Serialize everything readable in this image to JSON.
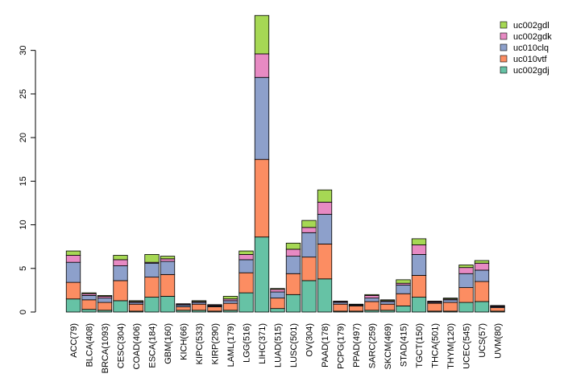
{
  "chart_data": {
    "type": "bar",
    "stacked": true,
    "title": "",
    "xlabel": "",
    "ylabel": "",
    "ylim": [
      0,
      34.3
    ],
    "yticks": [
      0,
      5,
      10,
      15,
      20,
      25,
      30
    ],
    "grid": false,
    "legend_position": "top-right",
    "categories": [
      "ACC(79)",
      "BLCA(408)",
      "BRCA(1093)",
      "CESC(304)",
      "COAD(406)",
      "ESCA(184)",
      "GBM(160)",
      "KICH(66)",
      "KIPC(533)",
      "KIRP(290)",
      "LAML(179)",
      "LGG(516)",
      "LIHC(371)",
      "LUAD(515)",
      "LUSC(501)",
      "OV(304)",
      "PAAD(178)",
      "PCPG(179)",
      "PPAD(497)",
      "SARC(259)",
      "SKCM(469)",
      "STAD(415)",
      "TGCT(150)",
      "THCA(501)",
      "THYM(120)",
      "UCEC(545)",
      "UCS(57)",
      "UVM(80)"
    ],
    "series": [
      {
        "name": "uc002gdj",
        "color": "#66c2a5",
        "values": [
          1.5,
          0.3,
          0.2,
          1.3,
          0.1,
          1.7,
          1.8,
          0.2,
          0.2,
          0.1,
          0.2,
          2.2,
          8.6,
          0.4,
          2.0,
          3.6,
          3.8,
          0.1,
          0.1,
          0.2,
          0.2,
          0.7,
          1.7,
          0.1,
          0.1,
          1.1,
          1.2,
          0.1
        ]
      },
      {
        "name": "uc010vtf",
        "color": "#fc8d62",
        "values": [
          1.9,
          1.1,
          0.9,
          2.3,
          0.8,
          2.3,
          2.5,
          0.4,
          0.7,
          0.5,
          0.8,
          2.3,
          8.9,
          1.2,
          2.4,
          2.7,
          4.0,
          0.8,
          0.6,
          1.0,
          0.7,
          1.4,
          2.5,
          0.9,
          1.0,
          1.7,
          2.3,
          0.4
        ]
      },
      {
        "name": "uc010clq",
        "color": "#8da0cb",
        "values": [
          2.3,
          0.5,
          0.5,
          1.7,
          0.2,
          1.6,
          1.5,
          0.2,
          0.2,
          0.1,
          0.3,
          1.5,
          9.4,
          0.7,
          2.0,
          2.8,
          3.4,
          0.2,
          0.1,
          0.4,
          0.3,
          1.0,
          2.4,
          0.1,
          0.3,
          1.6,
          1.3,
          0.1
        ]
      },
      {
        "name": "uc002gdk",
        "color": "#e78ac3",
        "values": [
          0.8,
          0.2,
          0.2,
          0.7,
          0.1,
          0.1,
          0.3,
          0.1,
          0.1,
          0.1,
          0.2,
          0.6,
          2.7,
          0.3,
          0.8,
          0.6,
          1.4,
          0.1,
          0.05,
          0.3,
          0.1,
          0.2,
          1.1,
          0.1,
          0.1,
          0.7,
          0.8,
          0.1
        ]
      },
      {
        "name": "uc002gdl",
        "color": "#a6d854",
        "values": [
          0.5,
          0.1,
          0.1,
          0.5,
          0.1,
          0.9,
          0.3,
          0.05,
          0.1,
          0.05,
          0.3,
          0.4,
          4.4,
          0.1,
          0.7,
          0.8,
          1.4,
          0.05,
          0.05,
          0.1,
          0.1,
          0.4,
          0.7,
          0.05,
          0.1,
          0.3,
          0.3,
          0.05
        ]
      }
    ],
    "legend_order": [
      "uc002gdl",
      "uc002gdk",
      "uc010clq",
      "uc010vtf",
      "uc002gdj"
    ]
  }
}
